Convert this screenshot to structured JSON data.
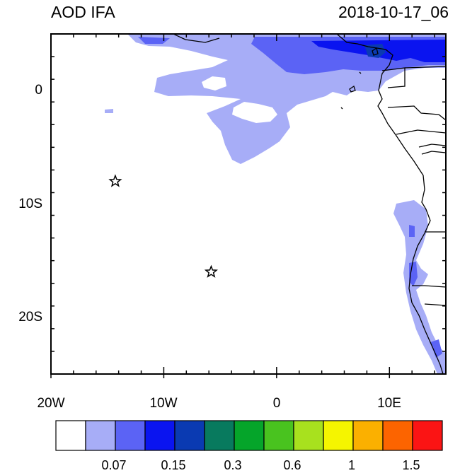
{
  "header": {
    "title": "AOD IFA",
    "datetime": "2018-10-17_06"
  },
  "map": {
    "lon_range": [
      -20,
      15
    ],
    "lat_range": [
      -25,
      5
    ],
    "lon_ticks": [
      "20W",
      "10W",
      "0",
      "10E"
    ],
    "lat_ticks": [
      "0",
      "10S",
      "20S"
    ],
    "markers": [
      {
        "name": "star-marker",
        "lon": -14.3,
        "lat": -8.0
      },
      {
        "name": "star-marker",
        "lon": -5.8,
        "lat": -16.0
      }
    ]
  },
  "colorbar": {
    "colors": [
      "#ffffff",
      "#a7adf7",
      "#5b63f5",
      "#0a14f0",
      "#0a3ab2",
      "#087a5e",
      "#05a52a",
      "#49c31f",
      "#a8e11e",
      "#f5f500",
      "#fbb000",
      "#fc6400",
      "#fb1414"
    ],
    "labels": [
      "0.07",
      "0.15",
      "0.3",
      "0.6",
      "1",
      "1.5"
    ]
  }
}
